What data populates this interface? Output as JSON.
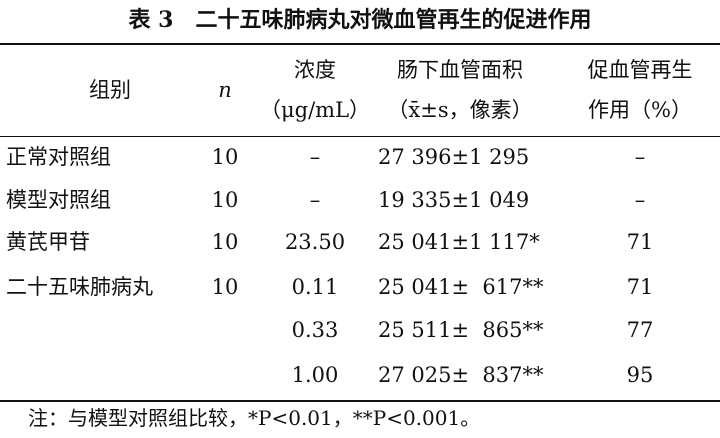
{
  "title": "表 3　二十五味肺病丸对微血管再生的促进作用",
  "table": {
    "header": [
      [
        "组别"
      ],
      [
        "n"
      ],
      [
        "浓度",
        "（μg/mL）"
      ],
      [
        "肠下血管面积",
        "（x̄±s，像素）"
      ],
      [
        "促血管再生",
        "作用（%）"
      ]
    ],
    "rows": [
      [
        "正常对照组",
        "10",
        "–",
        "27 396±1 295",
        "–"
      ],
      [
        "模型对照组",
        "10",
        "–",
        "19 335±1 049",
        "–"
      ],
      [
        "黄芪甲苷",
        "10",
        "23.50",
        "25 041±1 117*",
        "71"
      ],
      [
        "二十五味肺病丸",
        "10",
        "0.11",
        "25 041±  617**",
        "71"
      ],
      [
        "",
        "",
        "0.33",
        "25 511±  865**",
        "77"
      ],
      [
        "",
        "",
        "1.00",
        "27 025±  837**",
        "95"
      ]
    ]
  },
  "note": "注：与模型对照组比较，*P<0.01，**P<0.001。"
}
